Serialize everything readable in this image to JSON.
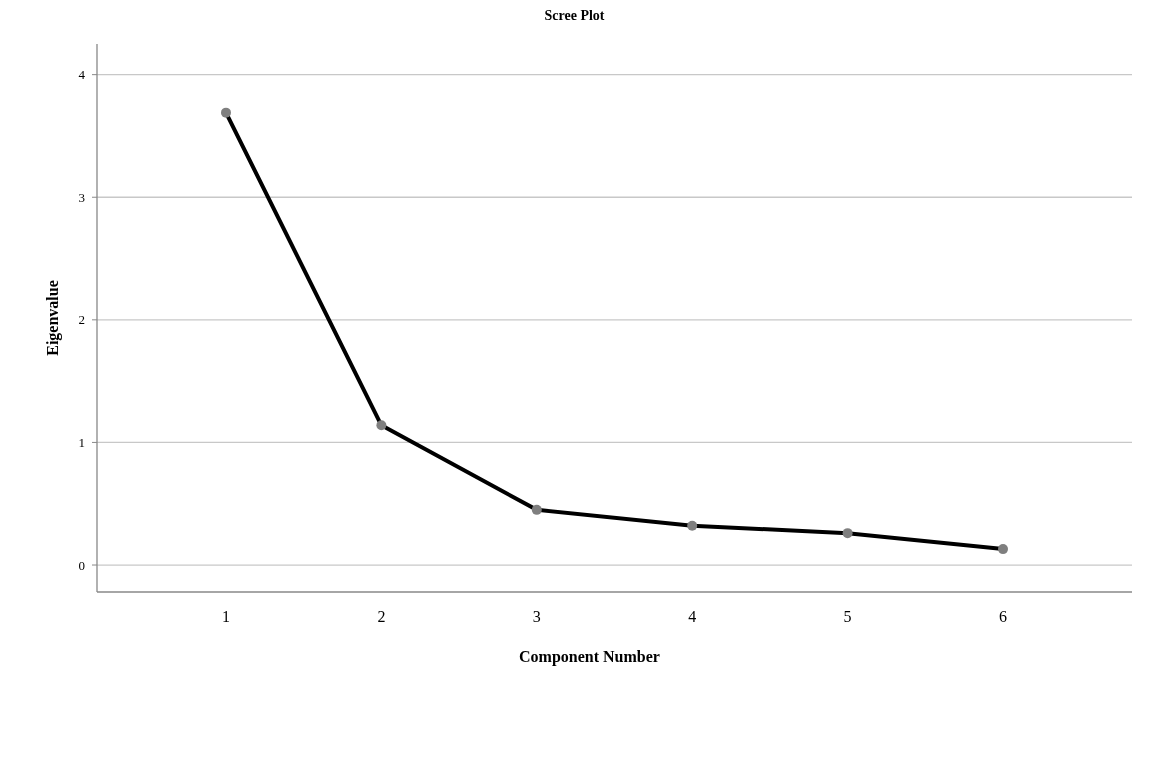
{
  "chart_data": {
    "type": "line",
    "title": "Scree Plot",
    "xlabel": "Component Number",
    "ylabel": "Eigenvalue",
    "categories": [
      "1",
      "2",
      "3",
      "4",
      "5",
      "6"
    ],
    "series": [
      {
        "color": "#000000",
        "values": [
          3.69,
          1.14,
          0.45,
          0.32,
          0.26,
          0.13
        ]
      }
    ],
    "ylim": [
      -0.22,
      4.25
    ],
    "yticks": [
      0,
      1,
      2,
      3,
      4
    ],
    "grid": "y",
    "marker": "circle",
    "line_style": "solid"
  }
}
